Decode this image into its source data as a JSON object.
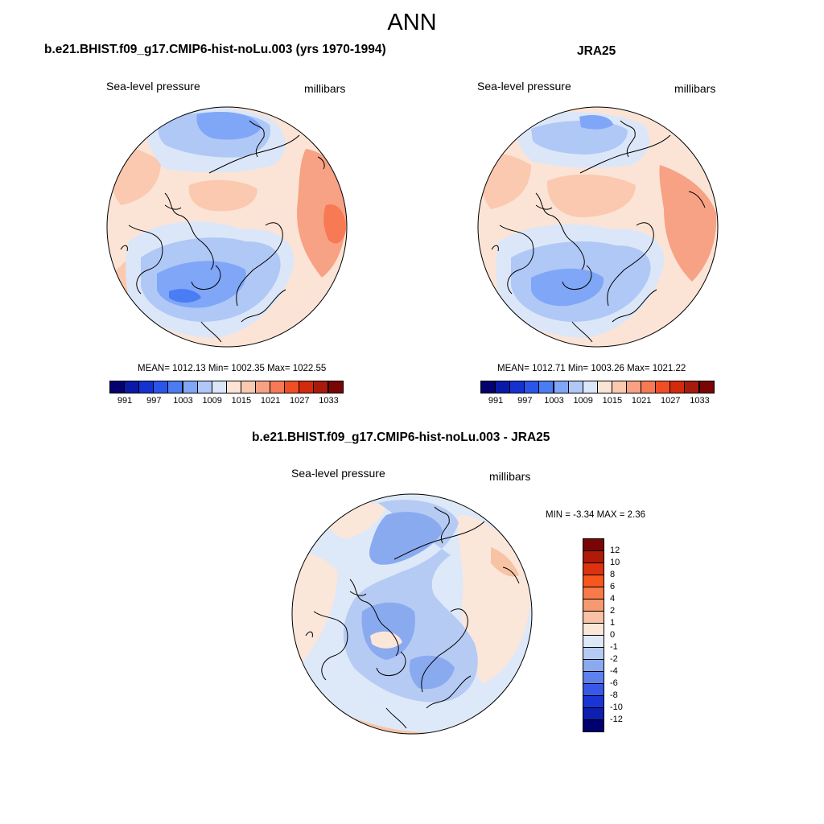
{
  "page_title": "ANN",
  "panels": [
    {
      "title": "b.e21.BHIST.f09_g17.CMIP6-hist-noLu.003 (yrs 1970-1994)",
      "variable": "Sea-level pressure",
      "units": "millibars",
      "stats": "MEAN= 1012.13  Min= 1002.35  Max= 1022.55",
      "mean": 1012.13,
      "min": 1002.35,
      "max": 1022.55
    },
    {
      "title": "JRA25",
      "variable": "Sea-level pressure",
      "units": "millibars",
      "stats": "MEAN= 1012.71  Min= 1003.26  Max= 1021.22",
      "mean": 1012.71,
      "min": 1003.26,
      "max": 1021.22
    },
    {
      "title": "b.e21.BHIST.f09_g17.CMIP6-hist-noLu.003 - JRA25",
      "variable": "Sea-level pressure",
      "units": "millibars",
      "stats": "MIN =  -3.34 MAX =   2.36",
      "min": -3.34,
      "max": 2.36
    }
  ],
  "colorbar_abs": {
    "colors": [
      "#04006e",
      "#0a1aa8",
      "#1432d2",
      "#2a55ea",
      "#4a7cf4",
      "#7fa6f7",
      "#b0c8f6",
      "#dbe7f8",
      "#fbe4d6",
      "#fbc9b0",
      "#f7a284",
      "#f77a55",
      "#f24e26",
      "#d22a0a",
      "#a81a0a",
      "#7a0505"
    ],
    "tick_labels": [
      "991",
      "997",
      "1003",
      "1009",
      "1015",
      "1021",
      "1027",
      "1033"
    ]
  },
  "colorbar_diff": {
    "colors": [
      "#7a0505",
      "#b01a08",
      "#dc3210",
      "#f7561e",
      "#f77a48",
      "#f59a70",
      "#f7c3a4",
      "#fbe6da",
      "#dde9f8",
      "#b5cbf3",
      "#8aaaf0",
      "#5e82ec",
      "#3858e8",
      "#1a35d6",
      "#0d1fae",
      "#00006e"
    ],
    "tick_labels": [
      "12",
      "10",
      "8",
      "6",
      "4",
      "2",
      "1",
      "0",
      "-1",
      "-2",
      "-4",
      "-6",
      "-8",
      "-10",
      "-12"
    ]
  },
  "chart_data": [
    {
      "type": "map",
      "title": "b.e21.BHIST.f09_g17.CMIP6-hist-noLu.003 (yrs 1970-1994)",
      "projection": "polar stereographic (north)",
      "variable": "Sea-level pressure",
      "units": "millibars",
      "stats": {
        "mean": 1012.13,
        "min": 1002.35,
        "max": 1022.55
      },
      "contour_levels": [
        991,
        994,
        997,
        1000,
        1003,
        1006,
        1009,
        1012,
        1015,
        1018,
        1021,
        1024,
        1027,
        1030,
        1033
      ]
    },
    {
      "type": "map",
      "title": "JRA25",
      "projection": "polar stereographic (north)",
      "variable": "Sea-level pressure",
      "units": "millibars",
      "stats": {
        "mean": 1012.71,
        "min": 1003.26,
        "max": 1021.22
      },
      "contour_levels": [
        991,
        994,
        997,
        1000,
        1003,
        1006,
        1009,
        1012,
        1015,
        1018,
        1021,
        1024,
        1027,
        1030,
        1033
      ]
    },
    {
      "type": "map",
      "title": "b.e21.BHIST.f09_g17.CMIP6-hist-noLu.003 - JRA25",
      "projection": "polar stereographic (north)",
      "variable": "Sea-level pressure",
      "units": "millibars",
      "stats": {
        "min": -3.34,
        "max": 2.36
      },
      "contour_levels": [
        -12,
        -10,
        -8,
        -6,
        -4,
        -2,
        -1,
        0,
        1,
        2,
        4,
        6,
        8,
        10,
        12
      ]
    }
  ]
}
